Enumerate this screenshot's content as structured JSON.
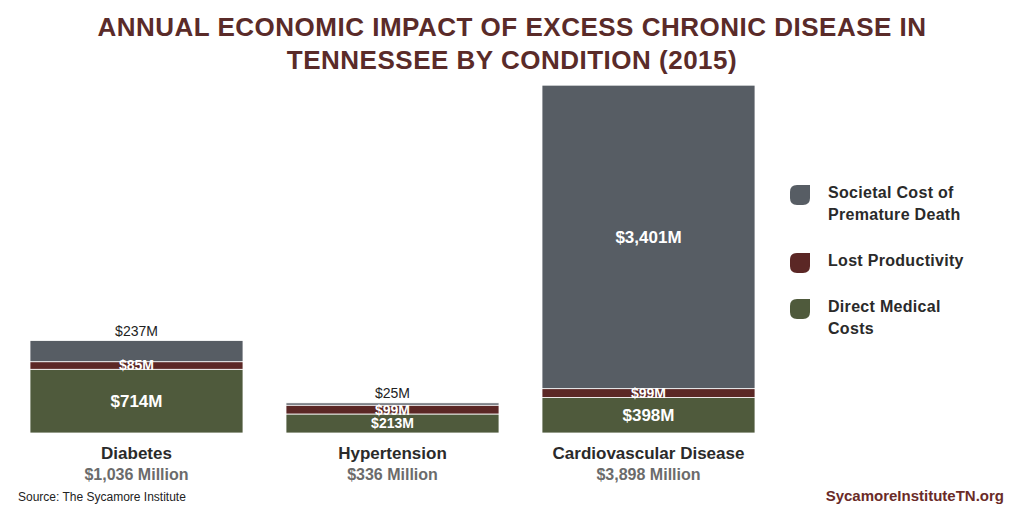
{
  "chart_data": {
    "type": "bar",
    "stacked": true,
    "data_labels": true,
    "tick_labels": false,
    "legend": "right",
    "title": "ANNUAL ECONOMIC IMPACT OF EXCESS CHRONIC DISEASE IN TENNESSEE BY CONDITION (2015)",
    "categories": [
      "Diabetes",
      "Hypertension",
      "Cardiovascular Disease"
    ],
    "category_totals": [
      "$1,036 Million",
      "$336 Million",
      "$3,898 Million"
    ],
    "ylim": [
      0,
      3900
    ],
    "series": [
      {
        "name": "Direct Medical Costs",
        "color": "#4f5a3c",
        "values": [
          714,
          213,
          398
        ],
        "value_labels": [
          "$714M",
          "$213M",
          "$398M"
        ]
      },
      {
        "name": "Lost Productivity",
        "color": "#5b2725",
        "values": [
          85,
          99,
          99
        ],
        "value_labels": [
          "$85M",
          "$99M",
          "$99M"
        ]
      },
      {
        "name": "Societal Cost of Premature Death",
        "color": "#575d64",
        "values": [
          237,
          25,
          3401
        ],
        "value_labels": [
          "$237M",
          "$25M",
          "$3,401M"
        ]
      }
    ],
    "source": "Source: The Sycamore Institute",
    "website": "SycamoreInstituteTN.org"
  }
}
